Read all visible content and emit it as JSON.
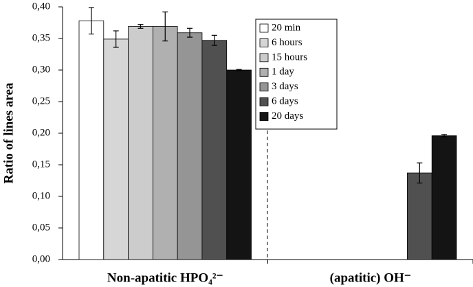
{
  "chart_data": {
    "type": "bar",
    "ylabel": "Ratio of lines area",
    "categories": [
      "Non-apatitic HPO₄²⁻",
      "(apatitic) OH⁻"
    ],
    "series": [
      {
        "name": "20 min",
        "color": "#ffffff",
        "values": [
          0.378,
          null
        ],
        "errors": [
          0.021,
          null
        ]
      },
      {
        "name": "6 hours",
        "color": "#d6d6d6",
        "values": [
          0.349,
          null
        ],
        "errors": [
          0.013,
          null
        ]
      },
      {
        "name": "15 hours",
        "color": "#cccccc",
        "values": [
          0.369,
          null
        ],
        "errors": [
          0.003,
          null
        ]
      },
      {
        "name": "1 day",
        "color": "#b0b0b0",
        "values": [
          0.369,
          null
        ],
        "errors": [
          0.023,
          null
        ]
      },
      {
        "name": "3 days",
        "color": "#959595",
        "values": [
          0.359,
          null
        ],
        "errors": [
          0.007,
          null
        ]
      },
      {
        "name": "6 days",
        "color": "#505050",
        "values": [
          0.347,
          0.137
        ],
        "errors": [
          0.008,
          0.016
        ]
      },
      {
        "name": "20 days",
        "color": "#141414",
        "values": [
          0.3,
          0.196
        ],
        "errors": [
          0.001,
          0.002
        ]
      }
    ],
    "ylim": [
      0,
      0.4
    ],
    "yticks": [
      {
        "value": 0,
        "label": "0,00"
      },
      {
        "value": 0.05,
        "label": "0,05"
      },
      {
        "value": 0.1,
        "label": "0,10"
      },
      {
        "value": 0.15,
        "label": "0,15"
      },
      {
        "value": 0.2,
        "label": "0,20"
      },
      {
        "value": 0.25,
        "label": "0,25"
      },
      {
        "value": 0.3,
        "label": "0,30"
      },
      {
        "value": 0.35,
        "label": "0,35"
      },
      {
        "value": 0.4,
        "label": "0,40"
      }
    ],
    "legend": "top-center"
  }
}
